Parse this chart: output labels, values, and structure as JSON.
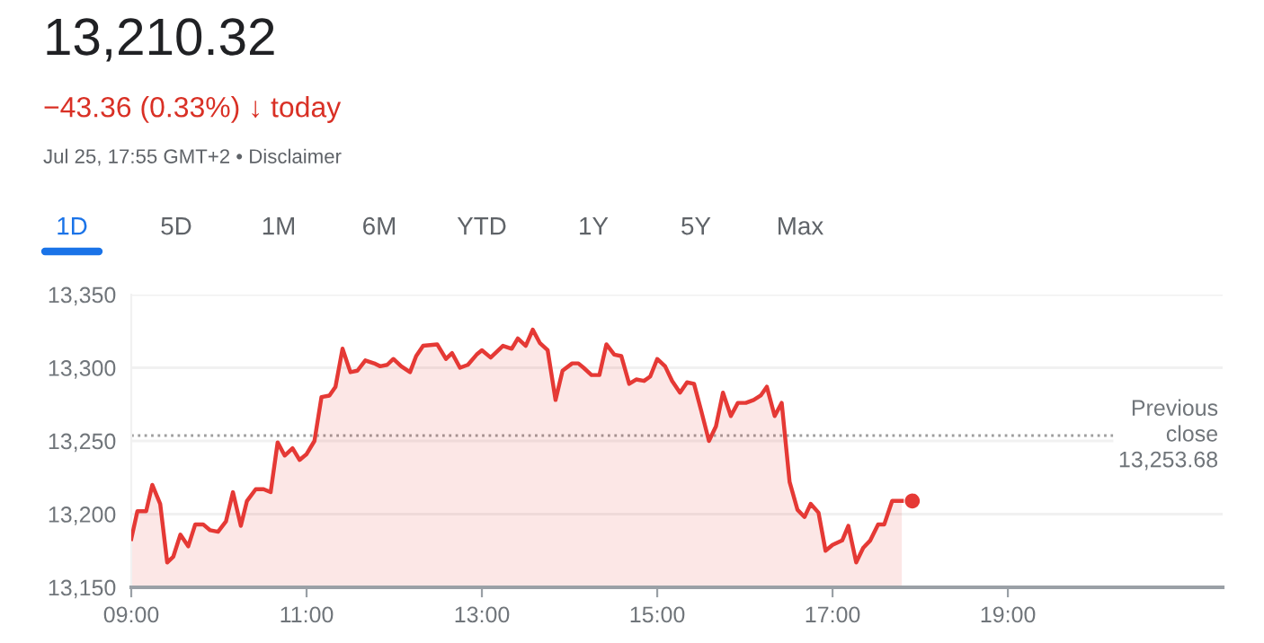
{
  "chart_data": {
    "type": "area",
    "title": "13,210.32",
    "subtitle": "−43.36 (0.33%) ↓ today",
    "annotations": [
      "Jul 25, 17:55 GMT+2 • Disclaimer",
      "1D",
      "5D",
      "1M",
      "6M",
      "YTD",
      "1Y",
      "5Y",
      "Max"
    ],
    "x": [
      9.0,
      9.07,
      9.17,
      9.24,
      9.33,
      9.41,
      9.48,
      9.56,
      9.65,
      9.73,
      9.82,
      9.9,
      9.99,
      10.08,
      10.16,
      10.25,
      10.32,
      10.42,
      10.51,
      10.59,
      10.67,
      10.75,
      10.84,
      10.92,
      11.0,
      11.09,
      11.17,
      11.26,
      11.33,
      11.41,
      11.5,
      11.58,
      11.67,
      11.77,
      11.84,
      11.92,
      11.99,
      12.08,
      12.18,
      12.25,
      12.33,
      12.49,
      12.59,
      12.66,
      12.75,
      12.84,
      12.94,
      13.0,
      13.1,
      13.24,
      13.34,
      13.41,
      13.5,
      13.58,
      13.66,
      13.75,
      13.84,
      13.92,
      14.03,
      14.1,
      14.16,
      14.25,
      14.34,
      14.42,
      14.51,
      14.59,
      14.68,
      14.76,
      14.85,
      14.92,
      15.0,
      15.09,
      15.17,
      15.26,
      15.34,
      15.42,
      15.5,
      15.59,
      15.67,
      15.75,
      15.84,
      15.92,
      16.01,
      16.1,
      16.18,
      16.25,
      16.34,
      16.42,
      16.51,
      16.6,
      16.68,
      16.75,
      16.84,
      16.92,
      17.0,
      17.11,
      17.18,
      17.27,
      17.35,
      17.43,
      17.52,
      17.59,
      17.68,
      17.79
    ],
    "series": [
      {
        "color": "#e53935",
        "values": [
          13183,
          13202,
          13202,
          13220,
          13207,
          13167,
          13171,
          13186,
          13178,
          13193,
          13193,
          13189,
          13188,
          13195,
          13215,
          13192,
          13209,
          13217,
          13217,
          13215,
          13249,
          13240,
          13245,
          13237,
          13241,
          13250,
          13280,
          13281,
          13287,
          13313,
          13297,
          13298,
          13305,
          13303,
          13301,
          13302,
          13306,
          13301,
          13297,
          13308,
          13315,
          13316,
          13306,
          13310,
          13300,
          13302,
          13309,
          13312,
          13307,
          13315,
          13313,
          13320,
          13315,
          13326,
          13317,
          13312,
          13278,
          13298,
          13303,
          13303,
          13300,
          13295,
          13295,
          13316,
          13309,
          13308,
          13289,
          13292,
          13291,
          13294,
          13306,
          13301,
          13291,
          13283,
          13290,
          13289,
          13271,
          13250,
          13260,
          13283,
          13267,
          13276,
          13276,
          13278,
          13281,
          13287,
          13267,
          13276,
          13222,
          13203,
          13198,
          13207,
          13201,
          13175,
          13179,
          13182,
          13192,
          13167,
          13177,
          13182,
          13193,
          13193,
          13209,
          13209
        ]
      },
      {
        "type": "scatter",
        "color": "#e53935",
        "x": [
          17.91
        ],
        "values": [
          13209
        ]
      }
    ],
    "xlim": [
      9,
      21.45
    ],
    "ylim": [
      13150,
      13350
    ],
    "xticks": [
      {
        "value": 9,
        "label": "09:00"
      },
      {
        "value": 11,
        "label": "11:00"
      },
      {
        "value": 13,
        "label": "13:00"
      },
      {
        "value": 15,
        "label": "15:00"
      },
      {
        "value": 17,
        "label": "17:00"
      },
      {
        "value": 19,
        "label": "19:00"
      }
    ],
    "yticks": [
      {
        "value": 13150,
        "label": "13,150"
      },
      {
        "value": 13200,
        "label": "13,200"
      },
      {
        "value": 13250,
        "label": "13,250"
      },
      {
        "value": 13300,
        "label": "13,300"
      },
      {
        "value": 13350,
        "label": "13,350"
      }
    ],
    "grid": "y",
    "ref_lines": [
      {
        "axis": "y",
        "value": 13253.68,
        "label": "Previous\nclose\n13,253.68",
        "color": "#9e9e9e",
        "line_style": "dotted"
      }
    ]
  }
}
